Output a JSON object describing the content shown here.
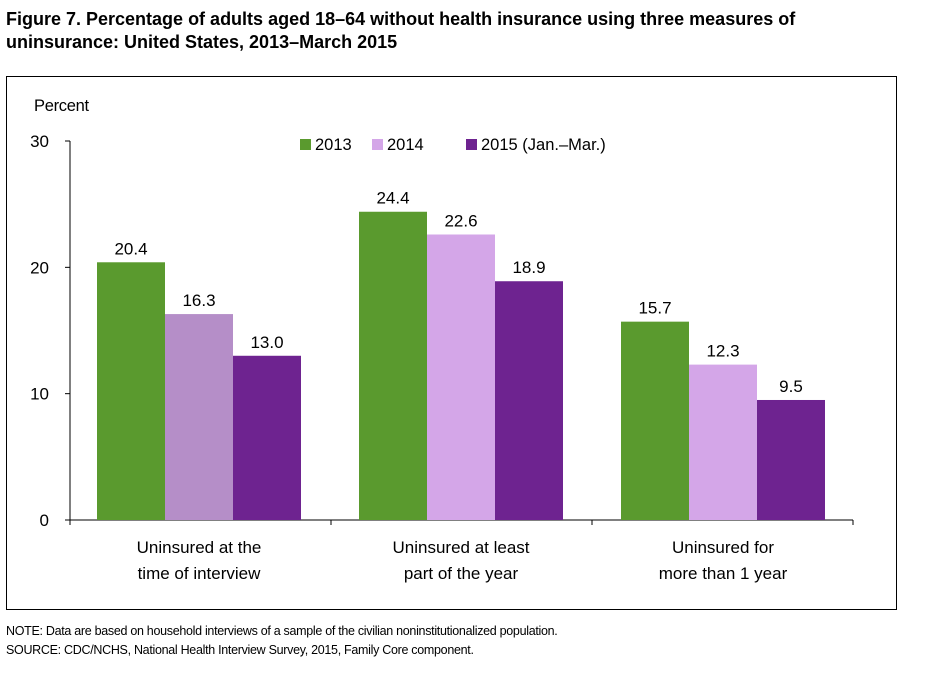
{
  "figure": {
    "title": "Figure 7. Percentage of adults aged 18–64 without health insurance using three measures of uninsurance: United States, 2013–March 2015"
  },
  "notes": {
    "note": "NOTE: Data are based on household interviews of a sample of the civilian noninstitutionalized population.",
    "source": "SOURCE: CDC/NCHS, National Health Interview Survey, 2015, Family Core component."
  },
  "colors": {
    "2013": "#5a9a2e",
    "2014": "#d4a6e8",
    "2014_first_group": "#b58ec8",
    "2015": "#6e2390"
  },
  "chart_data": {
    "type": "bar",
    "ylabel": "Percent",
    "xlabel": "",
    "ylim": [
      0,
      30
    ],
    "yticks": [
      "0",
      "10",
      "20",
      "30"
    ],
    "grid": false,
    "legend_position": "top",
    "categories": [
      [
        "Uninsured at the",
        "time of interview"
      ],
      [
        "Uninsured at least",
        "part of the year"
      ],
      [
        "Uninsured for",
        "more than 1 year"
      ]
    ],
    "series": [
      {
        "name": "2013",
        "values": [
          20.4,
          24.4,
          15.7
        ],
        "labels": [
          "20.4",
          "24.4",
          "15.7"
        ]
      },
      {
        "name": "2014",
        "values": [
          16.3,
          22.6,
          12.3
        ],
        "labels": [
          "16.3",
          "22.6",
          "12.3"
        ]
      },
      {
        "name": "2015 (Jan.–Mar.)",
        "values": [
          13.0,
          18.9,
          9.5
        ],
        "labels": [
          "13.0",
          "18.9",
          "9.5"
        ]
      }
    ]
  }
}
